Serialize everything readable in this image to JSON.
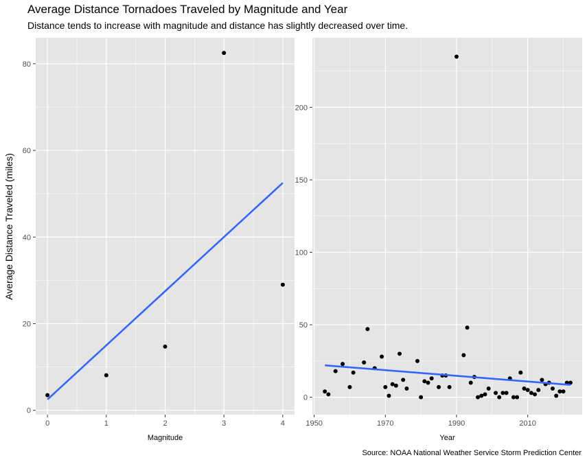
{
  "title": "Average Distance Tornadoes Traveled by Magnitude and Year",
  "subtitle": "Distance tends to increase with magnitude and distance has slightly decreased over time.",
  "caption": "Source: NOAA National Weather Service Storm Prediction Center",
  "colors": {
    "panel_bg": "#e5e5e5",
    "grid_major": "#ffffff",
    "point": "#000000",
    "trend_line": "#3366ff",
    "tick_text": "#4d4d4d"
  },
  "chart_data": [
    {
      "type": "scatter",
      "xlabel": "Magnitude",
      "ylabel": "Average Distance Traveled (miles)",
      "xlim": [
        -0.2,
        4.2
      ],
      "ylim": [
        -1,
        86
      ],
      "x_ticks": [
        0,
        1,
        2,
        3,
        4
      ],
      "y_ticks": [
        0,
        20,
        40,
        60,
        80
      ],
      "grid": true,
      "points": [
        {
          "x": 0,
          "y": 3.5
        },
        {
          "x": 1,
          "y": 8.1
        },
        {
          "x": 2,
          "y": 14.7
        },
        {
          "x": 3,
          "y": 82.5
        },
        {
          "x": 4,
          "y": 29.0
        }
      ],
      "trend": {
        "method": "linear",
        "x": [
          0,
          4
        ],
        "y": [
          2.5,
          52.5
        ]
      }
    },
    {
      "type": "scatter",
      "xlabel": "Year",
      "ylabel": "",
      "xlim": [
        1949.5,
        2025.3
      ],
      "ylim": [
        -12,
        248
      ],
      "x_ticks": [
        1950,
        1970,
        1990,
        2010
      ],
      "y_ticks": [
        0,
        50,
        100,
        150,
        200
      ],
      "grid": true,
      "points": [
        {
          "x": 1953,
          "y": 4
        },
        {
          "x": 1954,
          "y": 2
        },
        {
          "x": 1956,
          "y": 18
        },
        {
          "x": 1958,
          "y": 23
        },
        {
          "x": 1960,
          "y": 7
        },
        {
          "x": 1961,
          "y": 17
        },
        {
          "x": 1964,
          "y": 24
        },
        {
          "x": 1965,
          "y": 47
        },
        {
          "x": 1967,
          "y": 20
        },
        {
          "x": 1969,
          "y": 28
        },
        {
          "x": 1970,
          "y": 7
        },
        {
          "x": 1971,
          "y": 1
        },
        {
          "x": 1972,
          "y": 9
        },
        {
          "x": 1973,
          "y": 8
        },
        {
          "x": 1974,
          "y": 30
        },
        {
          "x": 1975,
          "y": 12
        },
        {
          "x": 1976,
          "y": 6
        },
        {
          "x": 1979,
          "y": 25
        },
        {
          "x": 1980,
          "y": 0
        },
        {
          "x": 1981,
          "y": 11
        },
        {
          "x": 1982,
          "y": 10
        },
        {
          "x": 1983,
          "y": 13
        },
        {
          "x": 1985,
          "y": 7
        },
        {
          "x": 1986,
          "y": 15
        },
        {
          "x": 1987,
          "y": 15
        },
        {
          "x": 1988,
          "y": 7
        },
        {
          "x": 1990,
          "y": 235
        },
        {
          "x": 1992,
          "y": 29
        },
        {
          "x": 1993,
          "y": 48
        },
        {
          "x": 1994,
          "y": 10
        },
        {
          "x": 1995,
          "y": 14
        },
        {
          "x": 1996,
          "y": 0
        },
        {
          "x": 1997,
          "y": 1
        },
        {
          "x": 1998,
          "y": 2
        },
        {
          "x": 1999,
          "y": 6
        },
        {
          "x": 2001,
          "y": 3
        },
        {
          "x": 2002,
          "y": 0
        },
        {
          "x": 2003,
          "y": 3
        },
        {
          "x": 2004,
          "y": 3
        },
        {
          "x": 2005,
          "y": 13
        },
        {
          "x": 2006,
          "y": 0
        },
        {
          "x": 2007,
          "y": 0
        },
        {
          "x": 2008,
          "y": 17
        },
        {
          "x": 2009,
          "y": 6
        },
        {
          "x": 2010,
          "y": 5
        },
        {
          "x": 2011,
          "y": 3
        },
        {
          "x": 2012,
          "y": 2
        },
        {
          "x": 2013,
          "y": 5
        },
        {
          "x": 2014,
          "y": 12
        },
        {
          "x": 2015,
          "y": 9
        },
        {
          "x": 2016,
          "y": 10
        },
        {
          "x": 2017,
          "y": 6
        },
        {
          "x": 2018,
          "y": 1
        },
        {
          "x": 2019,
          "y": 4
        },
        {
          "x": 2020,
          "y": 4
        },
        {
          "x": 2021,
          "y": 10
        },
        {
          "x": 2022,
          "y": 10
        }
      ],
      "trend": {
        "method": "linear",
        "x": [
          1953,
          2022
        ],
        "y": [
          22,
          8.5
        ]
      }
    }
  ]
}
